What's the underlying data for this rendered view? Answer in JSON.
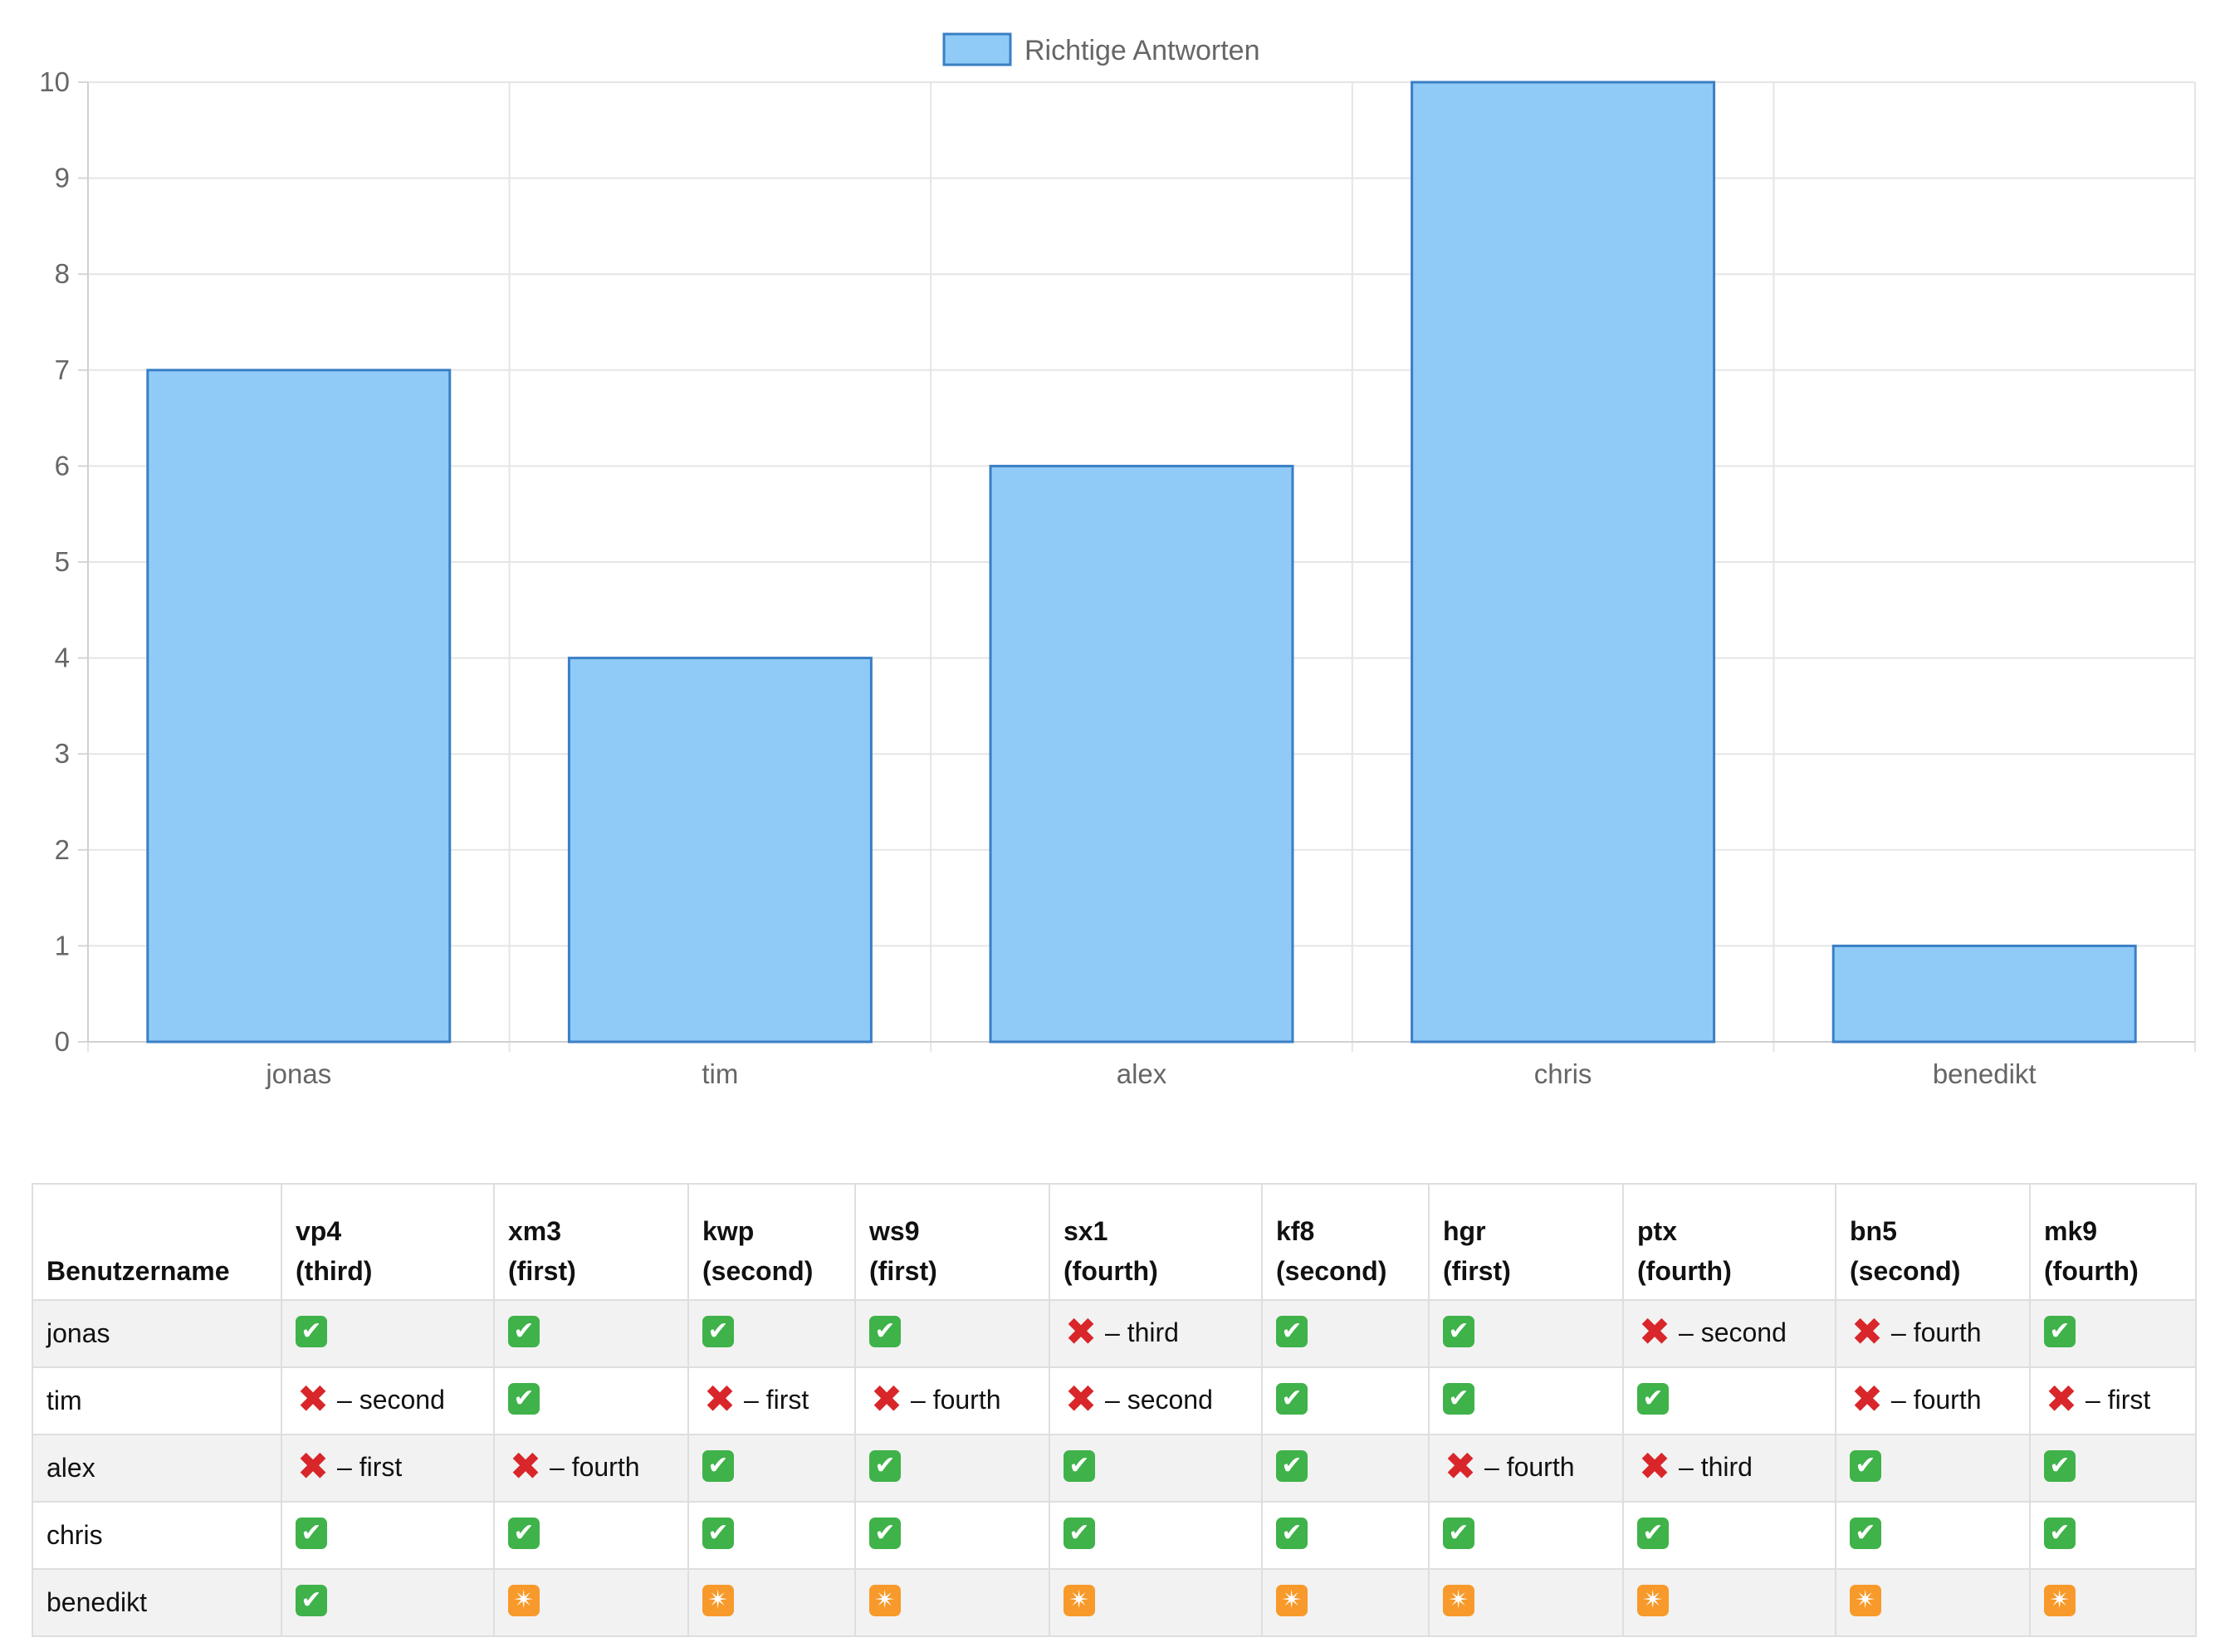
{
  "chart_data": {
    "type": "bar",
    "categories": [
      "jonas",
      "tim",
      "alex",
      "chris",
      "benedikt"
    ],
    "series": [
      {
        "name": "Richtige Antworten",
        "values": [
          7,
          4,
          6,
          10,
          1
        ]
      }
    ],
    "ylim": [
      0,
      10
    ],
    "yticks": [
      0,
      1,
      2,
      3,
      4,
      5,
      6,
      7,
      8,
      9,
      10
    ],
    "grid": true,
    "legend": "top-center",
    "colors": {
      "fill": "#90cbf8",
      "stroke": "#3a7fc4",
      "grid": "#e5e5e5"
    }
  },
  "table": {
    "header_first": "Benutzername",
    "columns": [
      {
        "code": "vp4",
        "answer": "(third)"
      },
      {
        "code": "xm3",
        "answer": "(first)"
      },
      {
        "code": "kwp",
        "answer": "(second)"
      },
      {
        "code": "ws9",
        "answer": "(first)"
      },
      {
        "code": "sx1",
        "answer": "(fourth)"
      },
      {
        "code": "kf8",
        "answer": "(second)"
      },
      {
        "code": "hgr",
        "answer": "(first)"
      },
      {
        "code": "ptx",
        "answer": "(fourth)"
      },
      {
        "code": "bn5",
        "answer": "(second)"
      },
      {
        "code": "mk9",
        "answer": "(fourth)"
      }
    ],
    "rows": [
      {
        "user": "jonas",
        "cells": [
          {
            "status": "correct"
          },
          {
            "status": "correct"
          },
          {
            "status": "correct"
          },
          {
            "status": "correct"
          },
          {
            "status": "wrong",
            "text": "– third"
          },
          {
            "status": "correct"
          },
          {
            "status": "correct"
          },
          {
            "status": "wrong",
            "text": "– second"
          },
          {
            "status": "wrong",
            "text": "– fourth"
          },
          {
            "status": "correct"
          }
        ]
      },
      {
        "user": "tim",
        "cells": [
          {
            "status": "wrong",
            "text": "– second"
          },
          {
            "status": "correct"
          },
          {
            "status": "wrong",
            "text": "– first"
          },
          {
            "status": "wrong",
            "text": "– fourth"
          },
          {
            "status": "wrong",
            "text": "– second"
          },
          {
            "status": "correct"
          },
          {
            "status": "correct"
          },
          {
            "status": "correct"
          },
          {
            "status": "wrong",
            "text": "– fourth"
          },
          {
            "status": "wrong",
            "text": "– first"
          }
        ]
      },
      {
        "user": "alex",
        "cells": [
          {
            "status": "wrong",
            "text": "– first"
          },
          {
            "status": "wrong",
            "text": "– fourth"
          },
          {
            "status": "correct"
          },
          {
            "status": "correct"
          },
          {
            "status": "correct"
          },
          {
            "status": "correct"
          },
          {
            "status": "wrong",
            "text": "– fourth"
          },
          {
            "status": "wrong",
            "text": "– third"
          },
          {
            "status": "correct"
          },
          {
            "status": "correct"
          }
        ]
      },
      {
        "user": "chris",
        "cells": [
          {
            "status": "correct"
          },
          {
            "status": "correct"
          },
          {
            "status": "correct"
          },
          {
            "status": "correct"
          },
          {
            "status": "correct"
          },
          {
            "status": "correct"
          },
          {
            "status": "correct"
          },
          {
            "status": "correct"
          },
          {
            "status": "correct"
          },
          {
            "status": "correct"
          }
        ]
      },
      {
        "user": "benedikt",
        "cells": [
          {
            "status": "correct"
          },
          {
            "status": "none"
          },
          {
            "status": "none"
          },
          {
            "status": "none"
          },
          {
            "status": "none"
          },
          {
            "status": "none"
          },
          {
            "status": "none"
          },
          {
            "status": "none"
          },
          {
            "status": "none"
          },
          {
            "status": "none"
          }
        ]
      }
    ],
    "icons": {
      "correct": "check-mark-button-icon",
      "wrong": "cross-mark-icon",
      "none": "eight-pointed-star-icon"
    }
  }
}
